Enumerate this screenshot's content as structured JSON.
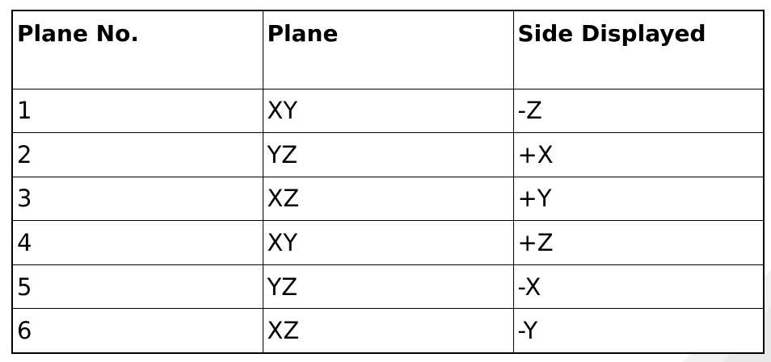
{
  "table": {
    "headers": [
      "Plane No.",
      "Plane",
      "Side Displayed"
    ],
    "rows": [
      [
        "1",
        "XY",
        "-Z"
      ],
      [
        "2",
        "YZ",
        "+X"
      ],
      [
        "3",
        "XZ",
        "+Y"
      ],
      [
        "4",
        "XY",
        "+Z"
      ],
      [
        "5",
        "YZ",
        "-X"
      ],
      [
        "6",
        "XZ",
        "-Y"
      ]
    ]
  }
}
